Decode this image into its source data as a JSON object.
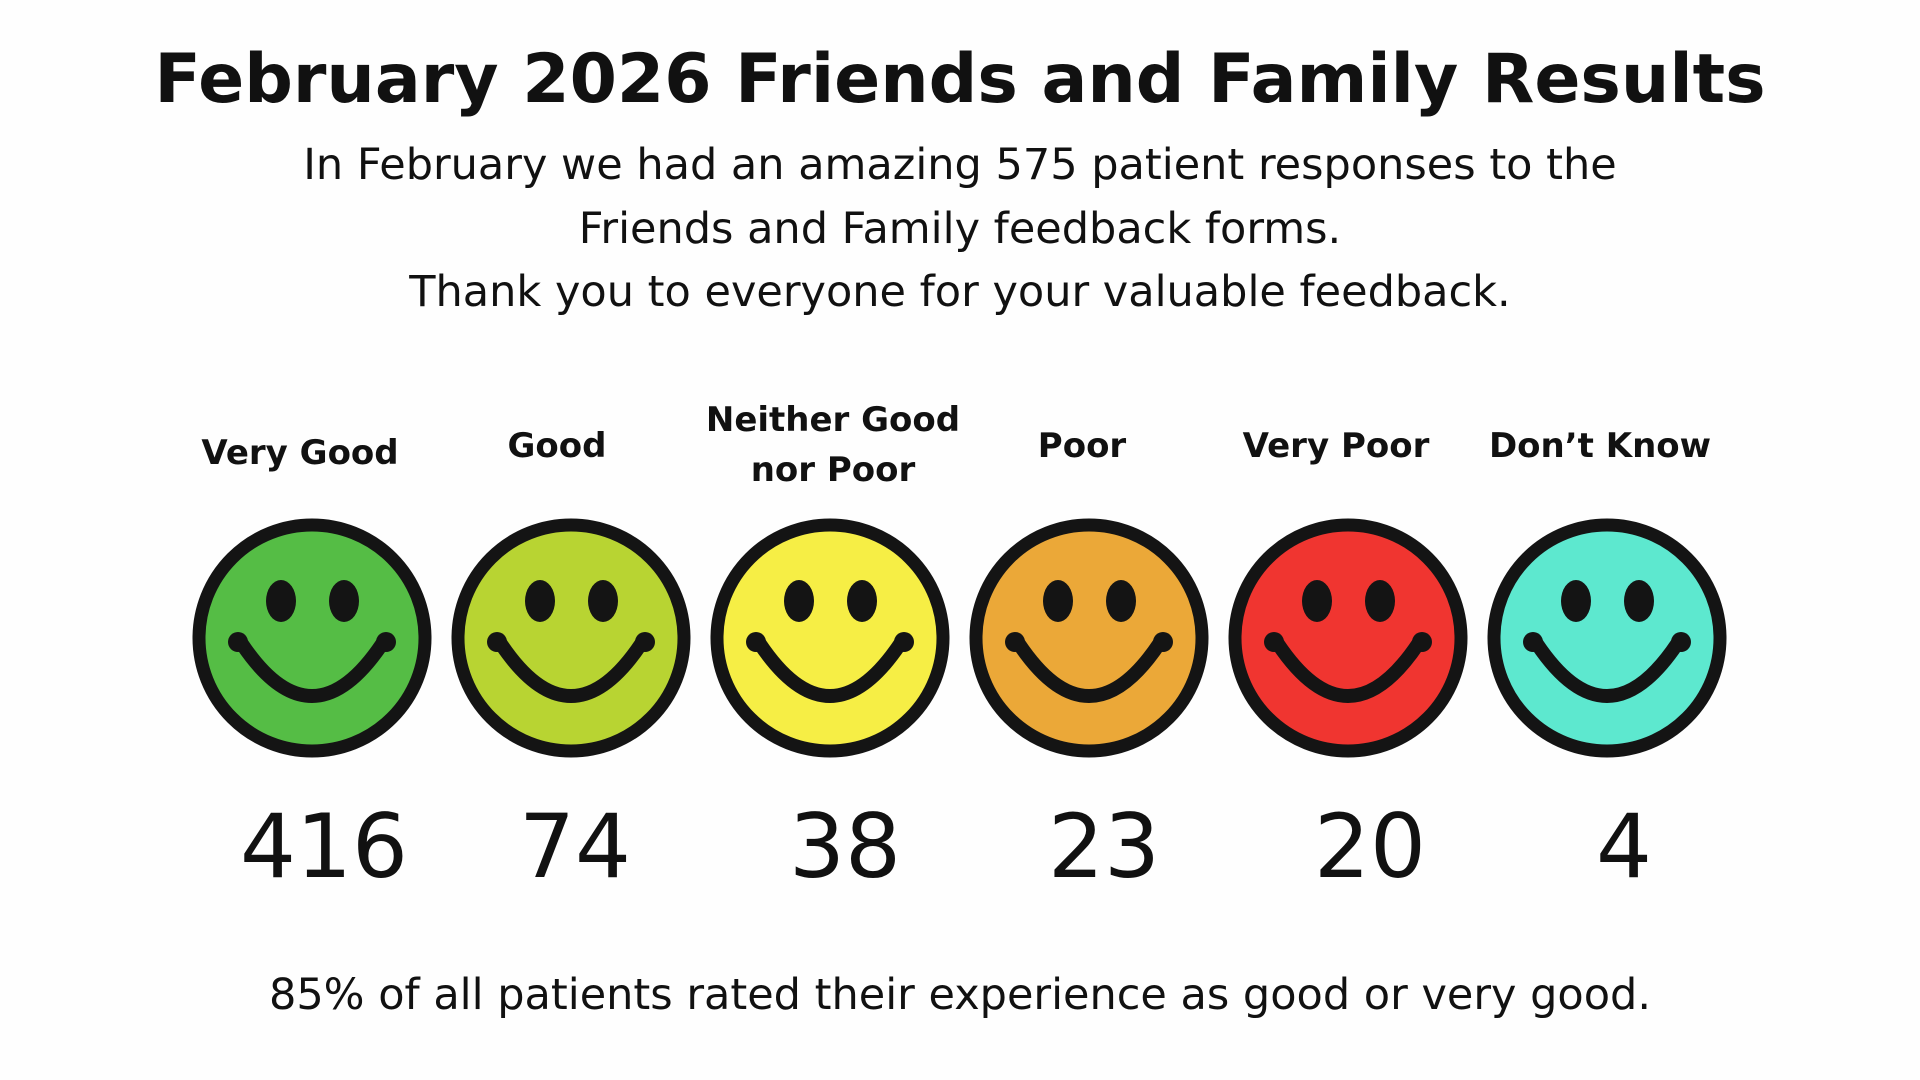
{
  "title": "February 2026 Friends and Family Results",
  "intro": [
    "In February we had an amazing 575 patient responses to the",
    "Friends and Family feedback forms.",
    "Thank you to everyone for your valuable feedback."
  ],
  "ratings": [
    {
      "label": "Very Good",
      "count": "416",
      "color": "#55BD45",
      "icon": "smiley-face-icon"
    },
    {
      "label": "Good",
      "count": "74",
      "color": "#B8D432",
      "icon": "smiley-face-icon"
    },
    {
      "label": "Neither Good nor Poor",
      "label_lines": [
        "Neither Good",
        "nor Poor"
      ],
      "count": "38",
      "color": "#F6EE45",
      "icon": "smiley-face-icon"
    },
    {
      "label": "Poor",
      "count": "23",
      "color": "#EBA838",
      "icon": "smiley-face-icon"
    },
    {
      "label": "Very Poor",
      "count": "20",
      "color": "#F03530",
      "icon": "smiley-face-icon"
    },
    {
      "label": "Don’t Know",
      "count": "4",
      "color": "#5DE8CF",
      "icon": "smiley-face-icon"
    }
  ],
  "footer": "85% of all patients rated their experience as good or very good."
}
